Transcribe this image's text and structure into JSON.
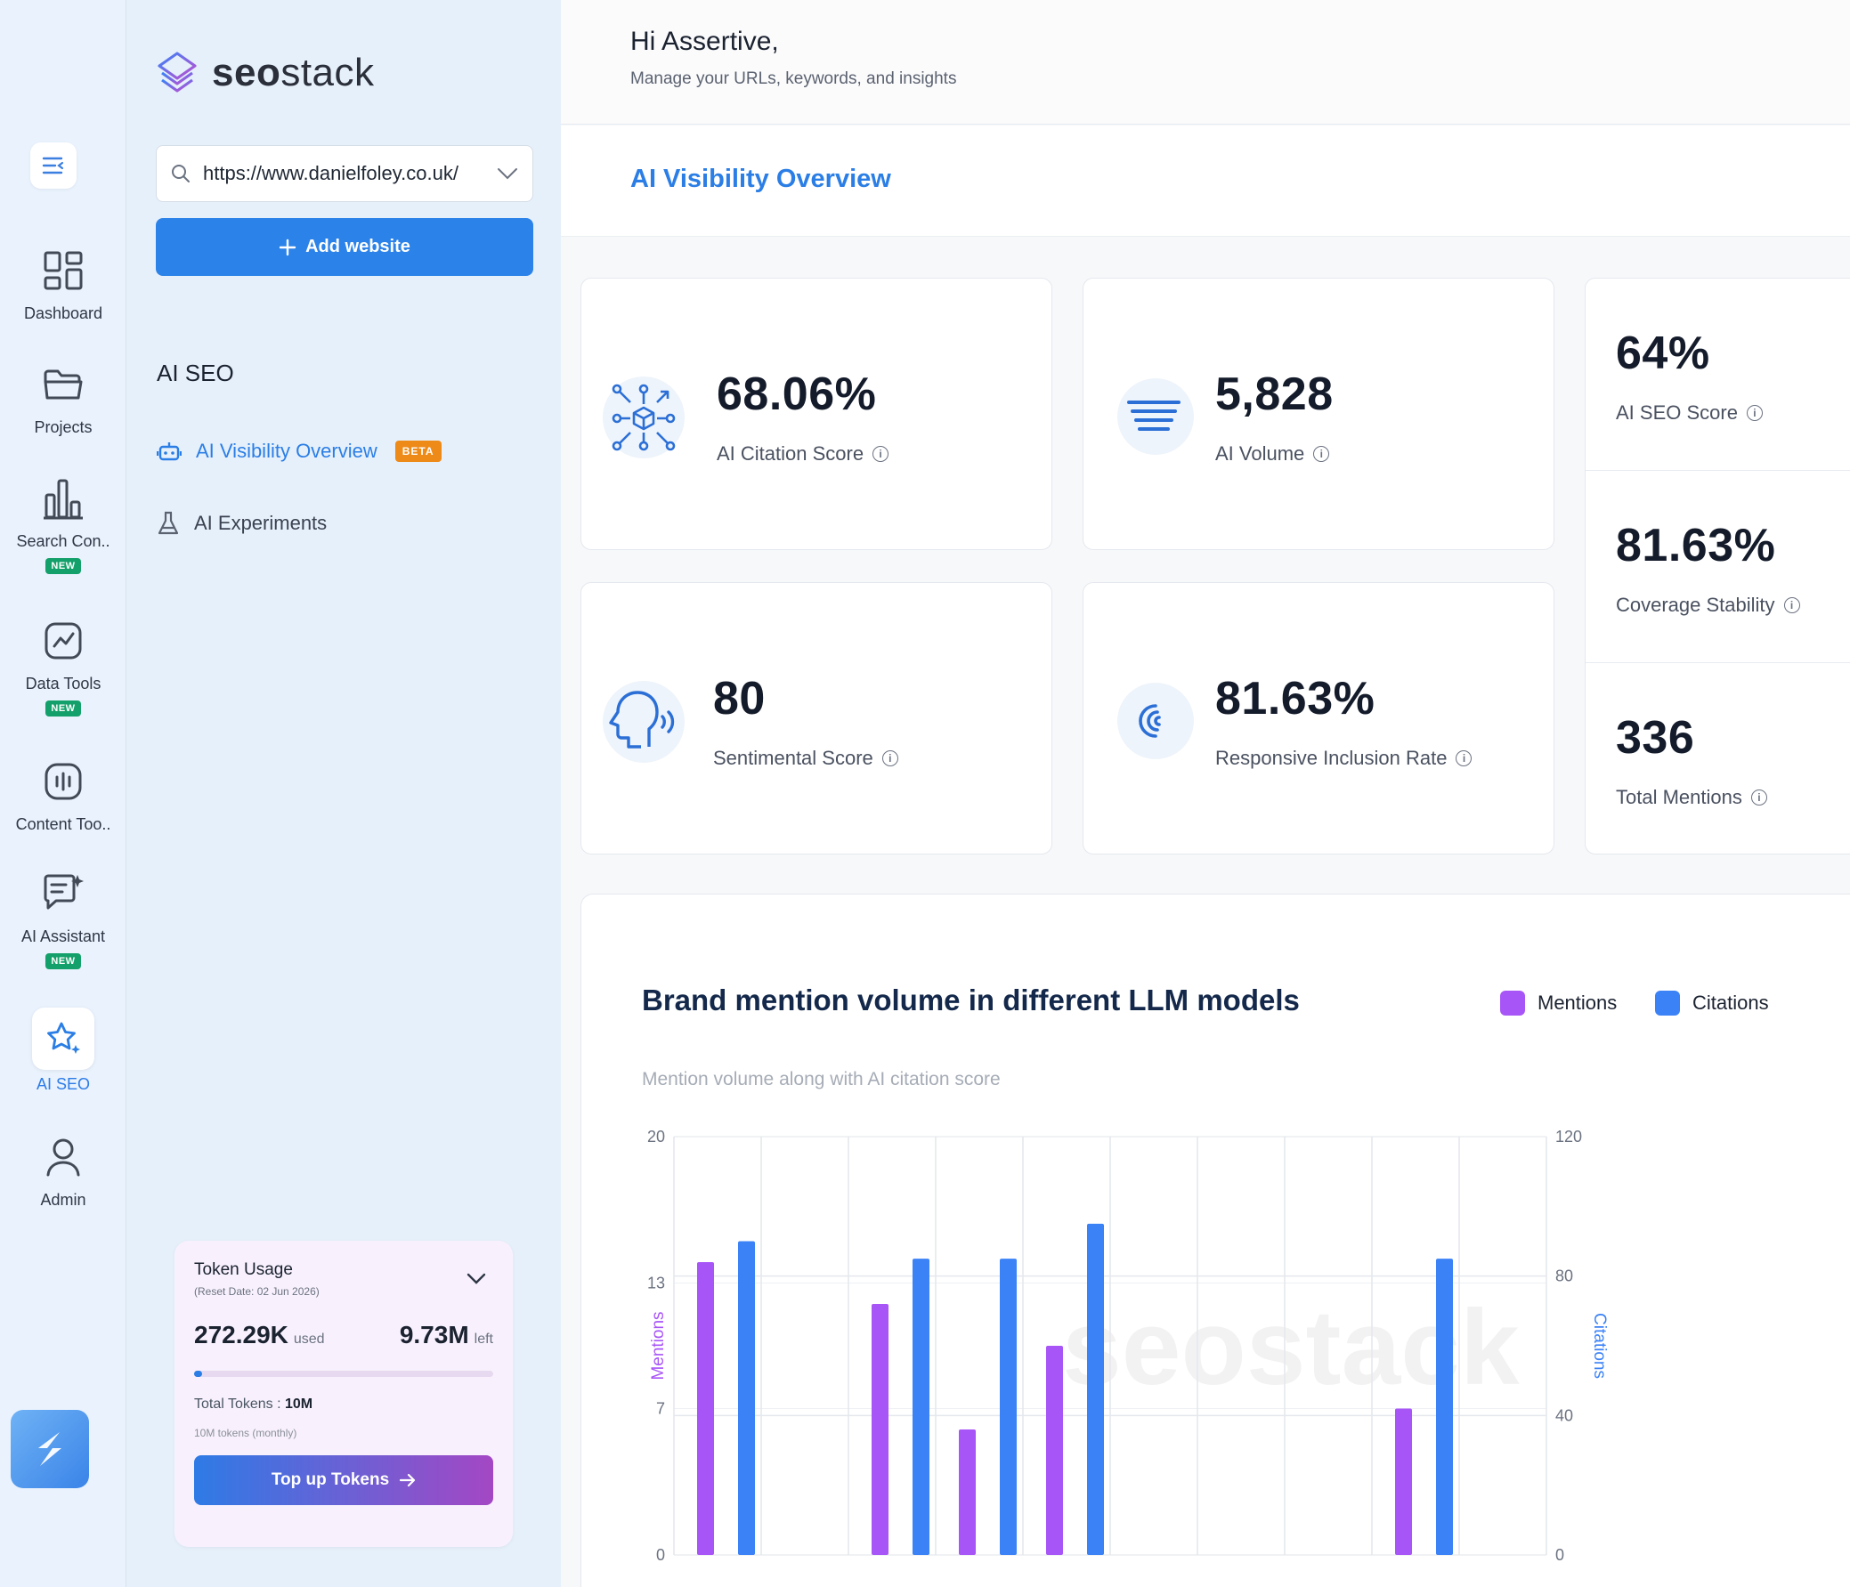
{
  "rail": {
    "items": [
      {
        "label": "Dashboard",
        "icon": "dashboard-icon"
      },
      {
        "label": "Projects",
        "icon": "folder-icon"
      },
      {
        "label": "Search Con..",
        "icon": "bar-chart-icon",
        "badge": "NEW"
      },
      {
        "label": "Data Tools",
        "icon": "trend-icon",
        "badge": "NEW"
      },
      {
        "label": "Content Too..",
        "icon": "audio-wave-icon"
      },
      {
        "label": "AI Assistant",
        "icon": "chat-sparkle-icon",
        "badge": "NEW"
      },
      {
        "label": "AI SEO",
        "icon": "star-icon"
      },
      {
        "label": "Admin",
        "icon": "user-icon"
      }
    ]
  },
  "panel": {
    "brand_bold": "seo",
    "brand_light": "stack",
    "url_value": "https://www.danielfoley.co.uk/",
    "add_website": "Add website",
    "section_title": "AI SEO",
    "nav": [
      {
        "label": "AI Visibility Overview",
        "badge": "BETA"
      },
      {
        "label": "AI Experiments"
      }
    ],
    "token": {
      "title": "Token Usage",
      "reset": "(Reset Date: 02 Jun 2026)",
      "used": "272.29K",
      "used_suffix": "used",
      "left": "9.73M",
      "left_suffix": "left",
      "progress": 0.027,
      "total_label": "Total Tokens :",
      "total_value": "10M",
      "monthly": "10M tokens (monthly)",
      "topup": "Top up Tokens"
    }
  },
  "header": {
    "greeting": "Hi Assertive,",
    "subtitle": "Manage your URLs, keywords, and insights"
  },
  "page_title": "AI Visibility Overview",
  "metrics": [
    {
      "value": "68.06%",
      "label": "AI Citation Score"
    },
    {
      "value": "5,828",
      "label": "AI Volume"
    },
    {
      "value": "80",
      "label": "Sentimental Score"
    },
    {
      "value": "81.63%",
      "label": "Responsive Inclusion Rate"
    }
  ],
  "side_metrics": [
    {
      "value": "64%",
      "label": "AI SEO Score"
    },
    {
      "value": "81.63%",
      "label": "Coverage Stability"
    },
    {
      "value": "336",
      "label": "Total Mentions"
    }
  ],
  "chart_title": "Brand mention volume in different LLM models",
  "chart_subtitle": "Mention volume along with AI citation score",
  "colors": {
    "mentions": "#a855f7",
    "citations": "#3b82f6",
    "accent": "#2b7ee5"
  },
  "chart_data": {
    "type": "bar",
    "ylabel": "Mentions",
    "y2label": "Citations",
    "ylim": [
      0,
      20
    ],
    "y2lim": [
      0,
      120
    ],
    "yticks": [
      "20",
      "13",
      "7",
      "0"
    ],
    "y2ticks": [
      "120",
      "80",
      "40",
      "0"
    ],
    "categories": [
      "",
      "",
      "",
      "",
      "",
      "",
      "",
      "",
      "",
      ""
    ],
    "series": [
      {
        "name": "Mentions",
        "axis": "left",
        "values": [
          14,
          0,
          12,
          6,
          10,
          0,
          0,
          0,
          7,
          0
        ]
      },
      {
        "name": "Citations",
        "axis": "right",
        "values": [
          90,
          0,
          85,
          85,
          95,
          0,
          0,
          0,
          85,
          0
        ]
      }
    ],
    "legend": "top-right",
    "grid": true
  }
}
